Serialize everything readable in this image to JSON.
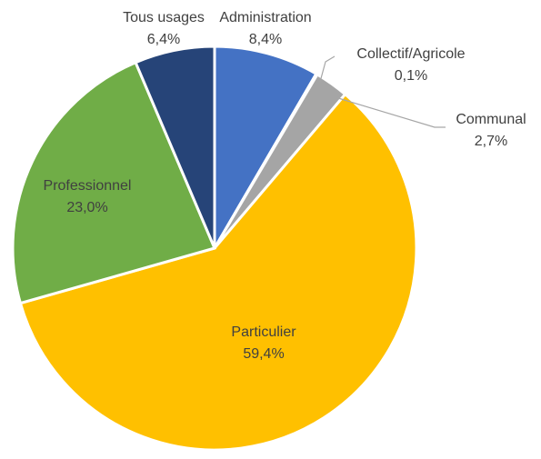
{
  "chart_data": {
    "type": "pie",
    "categories": [
      "Administration",
      "Collectif/Agricole",
      "Communal",
      "Particulier",
      "Professionnel",
      "Tous usages"
    ],
    "values": [
      8.4,
      0.1,
      2.7,
      59.4,
      23.0,
      6.4
    ],
    "value_labels": [
      "8,4%",
      "0,1%",
      "2,7%",
      "59,4%",
      "23,0%",
      "6,4%"
    ],
    "colors": [
      "#4472c4",
      "#ed7d31",
      "#a5a5a5",
      "#ffc000",
      "#70ad47",
      "#264478"
    ]
  }
}
